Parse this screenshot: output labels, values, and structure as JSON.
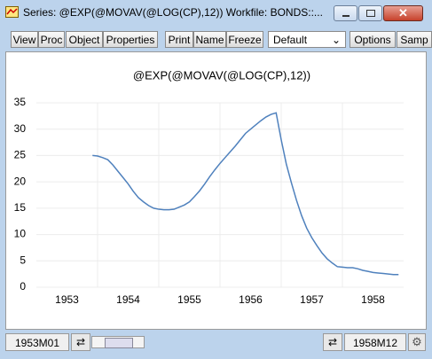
{
  "window": {
    "title": "Series: @EXP(@MOVAV(@LOG(CP),12))   Workfile: BONDS::...",
    "toolbar": [
      "View",
      "Proc",
      "Object",
      "Properties",
      "Print",
      "Name",
      "Freeze"
    ],
    "dropdown": "Default",
    "toolbar_right": [
      "Options",
      "Samp"
    ]
  },
  "chart_data": {
    "type": "line",
    "title": "@EXP(@MOVAV(@LOG(CP),12))",
    "color": "#4f81bd",
    "x": [
      1953.917,
      1954.0,
      1954.083,
      1954.167,
      1954.25,
      1954.333,
      1954.417,
      1954.5,
      1954.583,
      1954.667,
      1954.75,
      1954.833,
      1954.917,
      1955.0,
      1955.083,
      1955.167,
      1955.25,
      1955.333,
      1955.417,
      1955.5,
      1955.583,
      1955.667,
      1955.75,
      1955.833,
      1955.917,
      1956.0,
      1956.083,
      1956.167,
      1956.25,
      1956.333,
      1956.417,
      1956.5,
      1956.583,
      1956.667,
      1956.75,
      1956.833,
      1956.917,
      1957.0,
      1957.083,
      1957.167,
      1957.25,
      1957.333,
      1957.417,
      1957.5,
      1957.583,
      1957.667,
      1957.75,
      1957.833,
      1957.917,
      1958.0,
      1958.083,
      1958.167,
      1958.25,
      1958.333,
      1958.417,
      1958.5,
      1958.583,
      1958.667,
      1958.75,
      1958.833,
      1958.917
    ],
    "values": [
      25.0,
      24.9,
      24.6,
      24.2,
      23.2,
      22.0,
      20.8,
      19.6,
      18.2,
      17.0,
      16.2,
      15.5,
      15.0,
      14.8,
      14.7,
      14.7,
      14.8,
      15.2,
      15.6,
      16.2,
      17.2,
      18.3,
      19.6,
      21.0,
      22.3,
      23.5,
      24.6,
      25.7,
      26.8,
      28.0,
      29.2,
      30.0,
      30.8,
      31.6,
      32.3,
      32.8,
      33.1,
      28.0,
      23.4,
      19.8,
      16.5,
      13.6,
      11.2,
      9.4,
      7.9,
      6.5,
      5.4,
      4.6,
      3.9,
      3.8,
      3.7,
      3.7,
      3.5,
      3.2,
      3.0,
      2.8,
      2.7,
      2.6,
      2.5,
      2.4,
      2.4
    ],
    "xlim": [
      1953,
      1959
    ],
    "xticks": [
      {
        "value": 1953.5,
        "label": "1953"
      },
      {
        "value": 1954.5,
        "label": "1954"
      },
      {
        "value": 1955.5,
        "label": "1955"
      },
      {
        "value": 1956.5,
        "label": "1956"
      },
      {
        "value": 1957.5,
        "label": "1957"
      },
      {
        "value": 1958.5,
        "label": "1958"
      }
    ],
    "xgrid": [
      1954,
      1955,
      1956,
      1957,
      1958
    ],
    "ylim": [
      0,
      35
    ],
    "yticks": [
      0,
      5,
      10,
      15,
      20,
      25,
      30,
      35
    ],
    "grid": true
  },
  "status": {
    "start": "1953M01",
    "end": "1958M12"
  }
}
